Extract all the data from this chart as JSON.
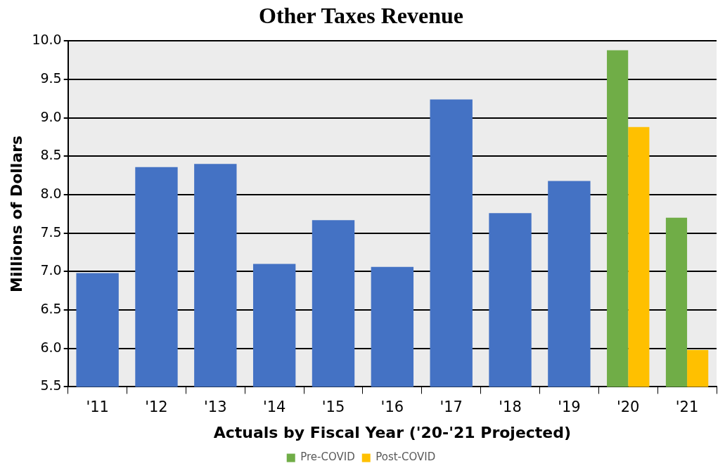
{
  "chart_data": {
    "type": "bar",
    "title": "Other Taxes Revenue",
    "xlabel": "Actuals by Fiscal Year ('20-'21 Projected)",
    "ylabel": "Millions of Dollars",
    "categories": [
      "'11",
      "'12",
      "'13",
      "'14",
      "'15",
      "'16",
      "'17",
      "'18",
      "'19",
      "'20",
      "'21"
    ],
    "series": [
      {
        "color": "#4472c4",
        "values": [
          6.98,
          8.36,
          8.4,
          7.1,
          7.67,
          7.06,
          9.24,
          7.76,
          8.18,
          null,
          null
        ]
      },
      {
        "name": "Pre-COVID",
        "color": "#70ad47",
        "values": [
          null,
          null,
          null,
          null,
          null,
          null,
          null,
          null,
          null,
          9.88,
          7.7
        ]
      },
      {
        "name": "Post-COVID",
        "color": "#ffc000",
        "values": [
          null,
          null,
          null,
          null,
          null,
          null,
          null,
          null,
          null,
          8.88,
          5.98
        ]
      }
    ],
    "ylim": [
      5.5,
      10.0
    ],
    "yticks": [
      {
        "value": 5.5,
        "label": "5.5"
      },
      {
        "value": 6,
        "label": "6.0"
      },
      {
        "value": 6.5,
        "label": "6.5"
      },
      {
        "value": 7,
        "label": "7.0"
      },
      {
        "value": 7.5,
        "label": "7.5"
      },
      {
        "value": 8,
        "label": "8.0"
      },
      {
        "value": 8.5,
        "label": "8.5"
      },
      {
        "value": 9,
        "label": "9.0"
      },
      {
        "value": 9.5,
        "label": "9.5"
      },
      {
        "value": 10,
        "label": "10.0"
      }
    ],
    "grid": "y",
    "legend": "bottom"
  }
}
